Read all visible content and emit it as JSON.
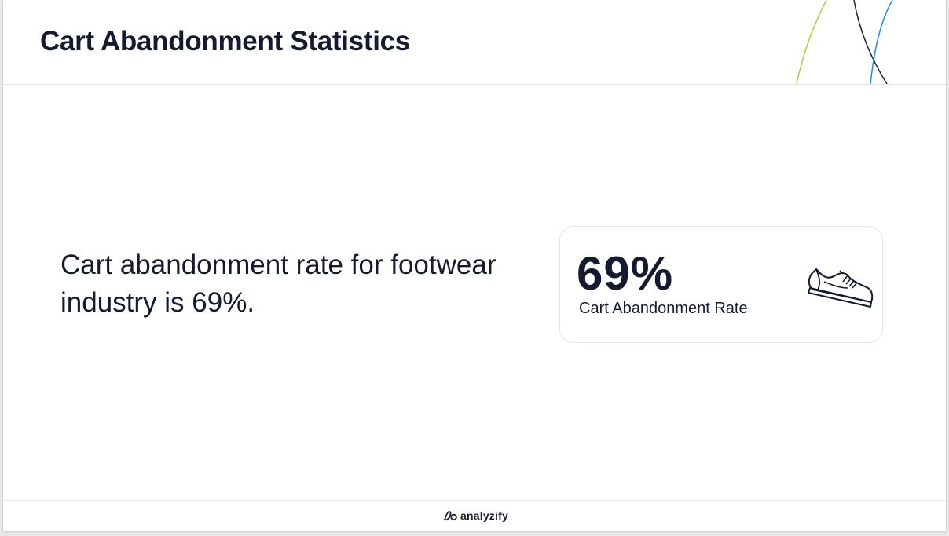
{
  "header": {
    "title": "Cart Abandonment Statistics"
  },
  "main": {
    "statement": "Cart abandonment rate for footwear industry is 69%."
  },
  "stat_card": {
    "value": "69%",
    "label": "Cart Abandonment Rate",
    "icon": "sneaker-icon"
  },
  "footer": {
    "brand_name": "analyzify",
    "brand_icon": "analyzify-logo-icon"
  },
  "colors": {
    "text": "#141a30",
    "accent_green": "#a6d23c",
    "accent_blue": "#1a8cf0",
    "accent_dark": "#1d2233"
  }
}
